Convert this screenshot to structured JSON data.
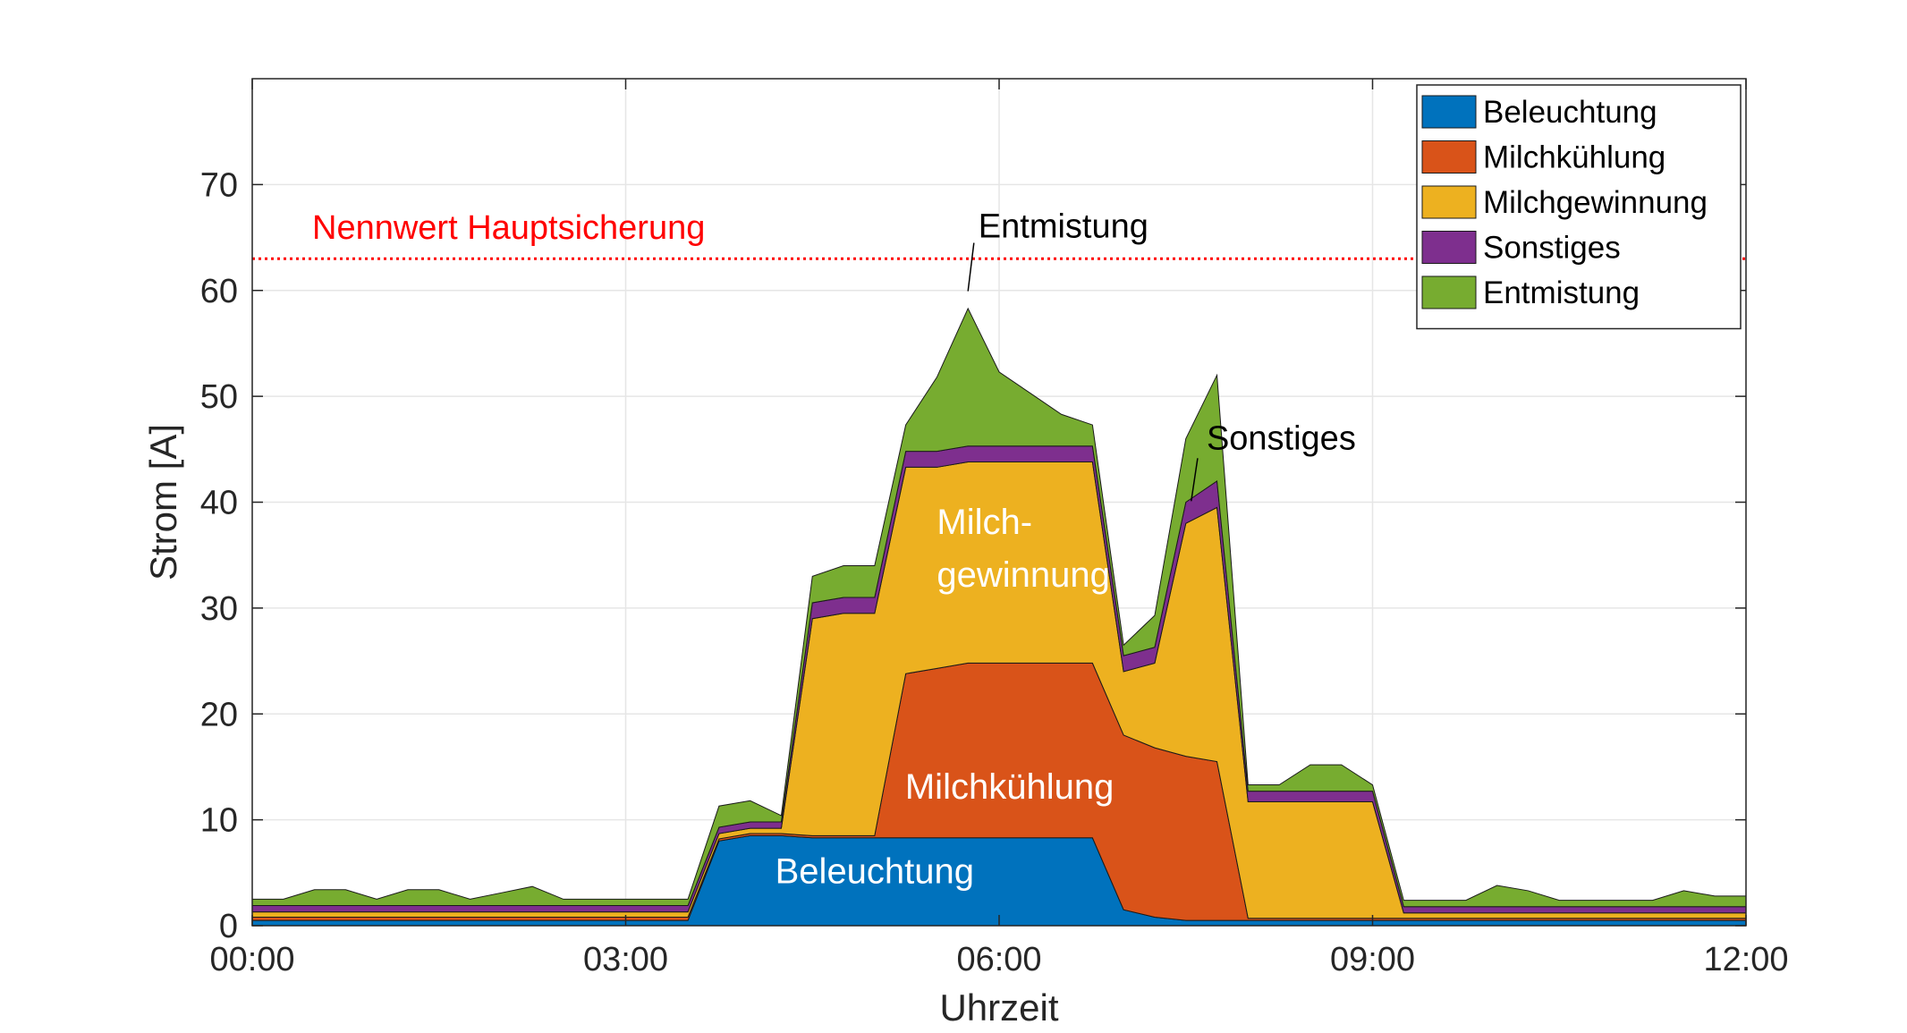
{
  "chart_data": {
    "type": "area",
    "stacked": true,
    "xlabel": "Uhrzeit",
    "ylabel": "Strom [A]",
    "xlim": [
      "00:00",
      "12:00"
    ],
    "ylim": [
      0,
      80
    ],
    "x_ticks": [
      "00:00",
      "03:00",
      "06:00",
      "09:00",
      "12:00"
    ],
    "y_ticks": [
      0,
      10,
      20,
      30,
      40,
      50,
      60,
      70
    ],
    "grid": true,
    "legend_position": "top-right",
    "x": [
      "00:00",
      "00:15",
      "00:30",
      "00:45",
      "01:00",
      "01:15",
      "01:30",
      "01:45",
      "02:00",
      "02:15",
      "02:30",
      "02:45",
      "03:00",
      "03:15",
      "03:30",
      "03:45",
      "04:00",
      "04:15",
      "04:30",
      "04:45",
      "05:00",
      "05:15",
      "05:30",
      "05:45",
      "06:00",
      "06:15",
      "06:30",
      "06:45",
      "07:00",
      "07:15",
      "07:30",
      "07:45",
      "08:00",
      "08:15",
      "08:30",
      "08:45",
      "09:00",
      "09:15",
      "09:30",
      "09:45",
      "10:00",
      "10:15",
      "10:30",
      "10:45",
      "11:00",
      "11:15",
      "11:30",
      "11:45",
      "12:00"
    ],
    "series": [
      {
        "name": "Beleuchtung",
        "color": "#0072BD",
        "values": [
          0.5,
          0.5,
          0.5,
          0.5,
          0.5,
          0.5,
          0.5,
          0.5,
          0.5,
          0.5,
          0.5,
          0.5,
          0.5,
          0.5,
          0.5,
          8,
          8.5,
          8.5,
          8.3,
          8.3,
          8.3,
          8.3,
          8.3,
          8.3,
          8.3,
          8.3,
          8.3,
          8.3,
          1.5,
          0.8,
          0.5,
          0.5,
          0.5,
          0.5,
          0.5,
          0.5,
          0.5,
          0.5,
          0.5,
          0.5,
          0.5,
          0.5,
          0.5,
          0.5,
          0.5,
          0.5,
          0.5,
          0.5,
          0.5
        ]
      },
      {
        "name": "Milchkühlung",
        "color": "#D95319",
        "values": [
          0.3,
          0.3,
          0.3,
          0.3,
          0.3,
          0.3,
          0.3,
          0.3,
          0.3,
          0.3,
          0.3,
          0.3,
          0.3,
          0.3,
          0.3,
          0.2,
          0.2,
          0.2,
          0.2,
          0.2,
          0.2,
          15.5,
          16,
          16.5,
          16.5,
          16.5,
          16.5,
          16.5,
          16.5,
          16,
          15.5,
          15,
          0.2,
          0.2,
          0.2,
          0.2,
          0.2,
          0.2,
          0.2,
          0.2,
          0.2,
          0.2,
          0.2,
          0.2,
          0.2,
          0.2,
          0.2,
          0.2,
          0.2
        ]
      },
      {
        "name": "Milchgewinnung",
        "color": "#EDB120",
        "values": [
          0.5,
          0.5,
          0.5,
          0.5,
          0.5,
          0.5,
          0.5,
          0.5,
          0.5,
          0.5,
          0.5,
          0.5,
          0.5,
          0.5,
          0.5,
          0.5,
          0.5,
          0.5,
          20.5,
          21,
          21,
          19.5,
          19,
          19,
          19,
          19,
          19,
          19,
          6,
          8,
          22,
          24,
          11,
          11,
          11,
          11,
          11,
          0.5,
          0.5,
          0.5,
          0.5,
          0.5,
          0.5,
          0.5,
          0.5,
          0.5,
          0.5,
          0.5,
          0.5
        ]
      },
      {
        "name": "Sonstiges",
        "color": "#7E2F8E",
        "values": [
          0.6,
          0.6,
          0.6,
          0.6,
          0.6,
          0.6,
          0.6,
          0.6,
          0.6,
          0.6,
          0.6,
          0.6,
          0.6,
          0.6,
          0.6,
          0.6,
          0.6,
          0.6,
          1.5,
          1.5,
          1.5,
          1.5,
          1.5,
          1.5,
          1.5,
          1.5,
          1.5,
          1.5,
          1.5,
          1.5,
          2,
          2.5,
          1,
          1,
          1,
          1,
          1,
          0.6,
          0.6,
          0.6,
          0.6,
          0.6,
          0.6,
          0.6,
          0.6,
          0.6,
          0.6,
          0.6,
          0.6
        ]
      },
      {
        "name": "Entmistung",
        "color": "#77AC30",
        "values": [
          0.6,
          0.6,
          1.5,
          1.5,
          0.6,
          1.5,
          1.5,
          0.6,
          1.2,
          1.8,
          0.6,
          0.6,
          0.6,
          0.6,
          0.6,
          2,
          2,
          0.6,
          2.5,
          3,
          3,
          2.5,
          7,
          13,
          7,
          5,
          3,
          2,
          1,
          3,
          6,
          10,
          0.6,
          0.6,
          2.5,
          2.5,
          0.6,
          0.6,
          0.6,
          0.6,
          2,
          1.5,
          0.6,
          0.6,
          0.6,
          0.6,
          1.5,
          1,
          1
        ]
      }
    ],
    "reference_line": {
      "y": 63,
      "label": "Nennwert Hauptsicherung",
      "color": "#FF0000"
    },
    "annotations": {
      "entmistung": {
        "text": "Entmistung",
        "x": "05:50",
        "y": 65
      },
      "sonstiges": {
        "text": "Sonstiges",
        "x": "07:40",
        "y": 45
      },
      "milch_1": {
        "text": "Milch-",
        "x": "05:30",
        "y": 37
      },
      "milch_2": {
        "text": "gewinnung",
        "x": "05:30",
        "y": 32
      },
      "milchkuehlung": {
        "text": "Milchkühlung",
        "x": "06:05",
        "y": 12
      },
      "beleuchtung": {
        "text": "Beleuchtung",
        "x": "05:00",
        "y": 4
      }
    }
  }
}
